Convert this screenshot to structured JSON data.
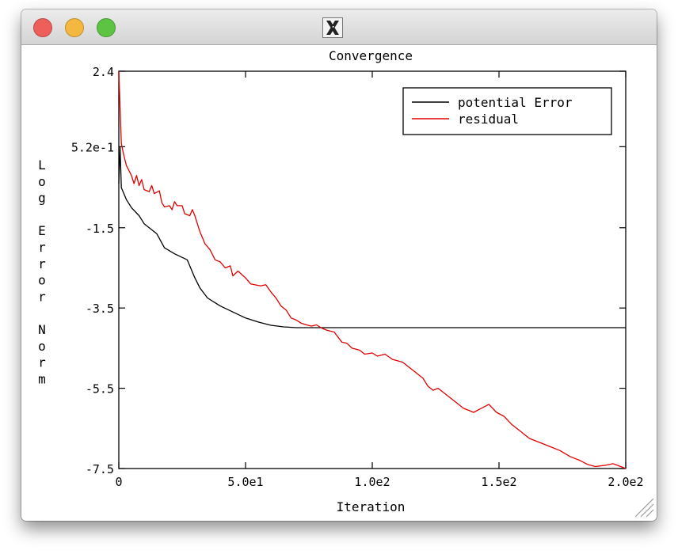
{
  "window": {
    "title_icon": "x11-icon"
  },
  "chart_data": {
    "type": "line",
    "title": "Convergence",
    "xlabel": "Iteration",
    "ylabel": "Log Error Norm",
    "xlim": [
      0,
      200
    ],
    "ylim": [
      -7.5,
      2.4
    ],
    "x_ticks": [
      0,
      50,
      100,
      150,
      200
    ],
    "x_tick_labels": [
      "0",
      "5.0e1",
      "1.0e2",
      "1.5e2",
      "2.0e2"
    ],
    "y_ticks": [
      2.4,
      0.52,
      -1.5,
      -3.5,
      -5.5,
      -7.5
    ],
    "y_tick_labels": [
      "2.4",
      "5.2e-1",
      "-1.5",
      "-3.5",
      "-5.5",
      "-7.5"
    ],
    "grid": false,
    "legend_position": "top-right",
    "series": [
      {
        "name": "potential Error",
        "color": "#000000",
        "points": [
          [
            0,
            -0.4
          ],
          [
            0.5,
            0.5
          ],
          [
            1,
            -0.5
          ],
          [
            3,
            -0.8
          ],
          [
            5,
            -1.0
          ],
          [
            8,
            -1.2
          ],
          [
            10,
            -1.4
          ],
          [
            15,
            -1.65
          ],
          [
            18,
            -2.0
          ],
          [
            22,
            -2.15
          ],
          [
            27,
            -2.3
          ],
          [
            28,
            -2.45
          ],
          [
            30,
            -2.75
          ],
          [
            32,
            -3.0
          ],
          [
            35,
            -3.25
          ],
          [
            40,
            -3.45
          ],
          [
            45,
            -3.6
          ],
          [
            50,
            -3.75
          ],
          [
            55,
            -3.85
          ],
          [
            60,
            -3.93
          ],
          [
            65,
            -3.97
          ],
          [
            70,
            -3.99
          ],
          [
            80,
            -3.99
          ],
          [
            200,
            -3.99
          ]
        ]
      },
      {
        "name": "residual",
        "color": "#e00000",
        "points": [
          [
            0,
            2.4
          ],
          [
            0.5,
            1.5
          ],
          [
            1,
            0.6
          ],
          [
            2,
            0.3
          ],
          [
            3,
            0.05
          ],
          [
            5,
            -0.2
          ],
          [
            6,
            -0.4
          ],
          [
            7,
            -0.2
          ],
          [
            8,
            -0.45
          ],
          [
            9,
            -0.3
          ],
          [
            10,
            -0.55
          ],
          [
            12,
            -0.6
          ],
          [
            13,
            -0.45
          ],
          [
            14,
            -0.65
          ],
          [
            16,
            -0.58
          ],
          [
            17,
            -0.88
          ],
          [
            18,
            -0.98
          ],
          [
            20,
            -0.95
          ],
          [
            21,
            -1.05
          ],
          [
            22,
            -0.85
          ],
          [
            23,
            -0.95
          ],
          [
            25,
            -0.95
          ],
          [
            26,
            -1.15
          ],
          [
            28,
            -1.2
          ],
          [
            29,
            -1.05
          ],
          [
            30,
            -1.2
          ],
          [
            31,
            -1.4
          ],
          [
            32,
            -1.6
          ],
          [
            34,
            -1.9
          ],
          [
            36,
            -2.05
          ],
          [
            38,
            -2.3
          ],
          [
            40,
            -2.35
          ],
          [
            42,
            -2.5
          ],
          [
            44,
            -2.45
          ],
          [
            45,
            -2.7
          ],
          [
            47,
            -2.58
          ],
          [
            50,
            -2.75
          ],
          [
            52,
            -2.9
          ],
          [
            56,
            -2.95
          ],
          [
            58,
            -2.92
          ],
          [
            60,
            -3.1
          ],
          [
            62,
            -3.25
          ],
          [
            64,
            -3.45
          ],
          [
            66,
            -3.55
          ],
          [
            68,
            -3.75
          ],
          [
            70,
            -3.8
          ],
          [
            72,
            -3.88
          ],
          [
            74,
            -3.92
          ],
          [
            76,
            -3.95
          ],
          [
            78,
            -3.92
          ],
          [
            80,
            -4.0
          ],
          [
            82,
            -4.05
          ],
          [
            85,
            -4.1
          ],
          [
            88,
            -4.35
          ],
          [
            90,
            -4.38
          ],
          [
            92,
            -4.5
          ],
          [
            95,
            -4.55
          ],
          [
            97,
            -4.65
          ],
          [
            100,
            -4.62
          ],
          [
            102,
            -4.7
          ],
          [
            105,
            -4.65
          ],
          [
            108,
            -4.78
          ],
          [
            112,
            -4.85
          ],
          [
            114,
            -4.95
          ],
          [
            117,
            -5.1
          ],
          [
            120,
            -5.25
          ],
          [
            122,
            -5.45
          ],
          [
            124,
            -5.55
          ],
          [
            126,
            -5.5
          ],
          [
            130,
            -5.7
          ],
          [
            133,
            -5.85
          ],
          [
            136,
            -6.0
          ],
          [
            140,
            -6.1
          ],
          [
            143,
            -6.0
          ],
          [
            146,
            -5.9
          ],
          [
            149,
            -6.1
          ],
          [
            152,
            -6.2
          ],
          [
            155,
            -6.4
          ],
          [
            158,
            -6.55
          ],
          [
            162,
            -6.75
          ],
          [
            166,
            -6.85
          ],
          [
            170,
            -6.95
          ],
          [
            174,
            -7.05
          ],
          [
            178,
            -7.2
          ],
          [
            182,
            -7.3
          ],
          [
            185,
            -7.4
          ],
          [
            188,
            -7.45
          ],
          [
            192,
            -7.42
          ],
          [
            195,
            -7.38
          ],
          [
            198,
            -7.45
          ],
          [
            200,
            -7.5
          ]
        ]
      }
    ]
  }
}
